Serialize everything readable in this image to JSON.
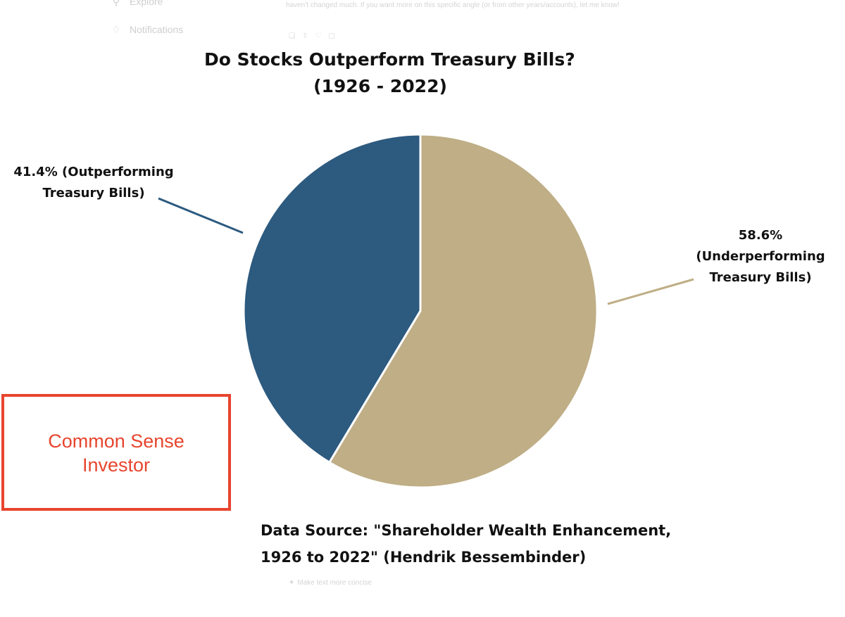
{
  "background_ui": {
    "nav": [
      {
        "label": "Explore",
        "icon": "search-icon"
      },
      {
        "label": "Notifications",
        "icon": "bell-icon"
      }
    ],
    "reply_text": "haven't changed much. If you want more on this specific angle (or from other years/accounts), let me know!",
    "hint": "Make text more concise"
  },
  "chart_data": {
    "type": "pie",
    "title_lines": [
      "Do Stocks Outperform Treasury Bills?",
      "(1926 - 2022)"
    ],
    "slices": [
      {
        "label": "Outperforming Treasury Bills",
        "value": 41.4,
        "color": "#2d5a7f",
        "label_lines": [
          "41.4% (Outperforming",
          "Treasury Bills)"
        ]
      },
      {
        "label": "Underperforming Treasury Bills",
        "value": 58.6,
        "color": "#bfae86",
        "label_lines": [
          "58.6%",
          "(Underperforming",
          "Treasury Bills)"
        ]
      }
    ],
    "source_lines": [
      "Data Source: \"Shareholder Wealth Enhancement,",
      "1926 to 2022\" (Hendrik Bessembinder)"
    ]
  },
  "watermark": {
    "text_lines": [
      "Common Sense",
      "Investor"
    ],
    "color": "#e8452e"
  }
}
